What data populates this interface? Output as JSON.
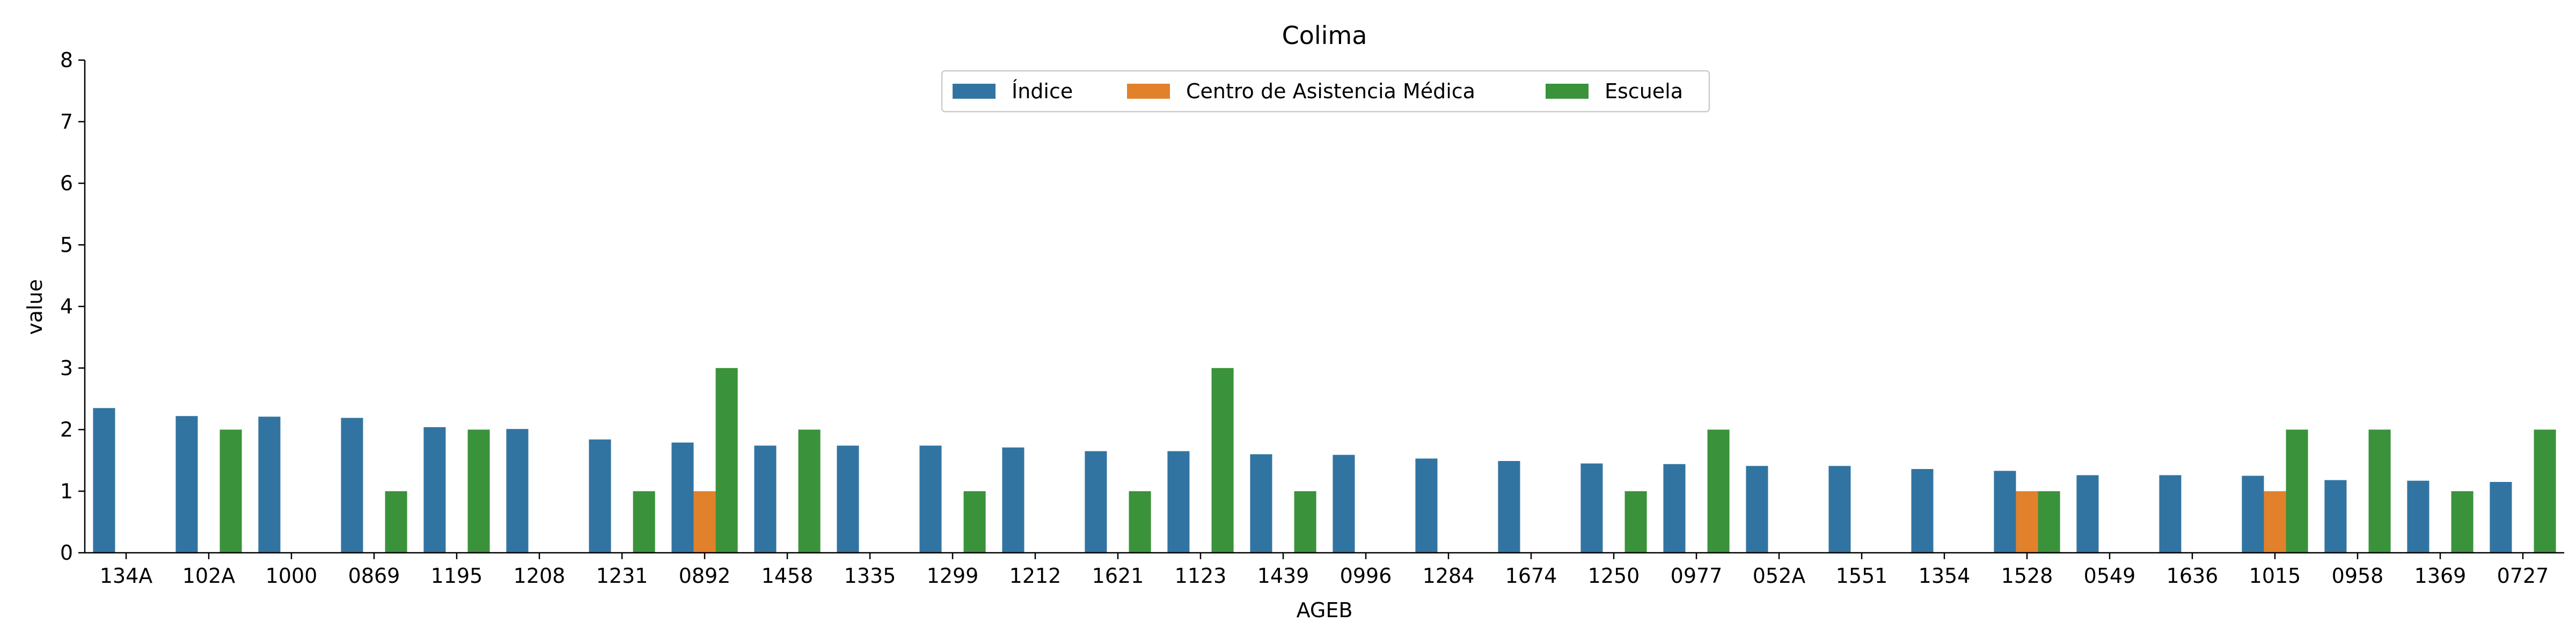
{
  "chart_data": {
    "type": "bar",
    "title": "Colima",
    "xlabel": "AGEB",
    "ylabel": "value",
    "ylim": [
      0,
      8
    ],
    "yticks": [
      "0",
      "1",
      "2",
      "3",
      "4",
      "5",
      "6",
      "7",
      "8"
    ],
    "legend_position": "top-center",
    "grid": false,
    "categories": [
      "134A",
      "102A",
      "1000",
      "0869",
      "1195",
      "1208",
      "1231",
      "0892",
      "1458",
      "1335",
      "1299",
      "1212",
      "1621",
      "1123",
      "1439",
      "0996",
      "1284",
      "1674",
      "1250",
      "0977",
      "052A",
      "1551",
      "1354",
      "1528",
      "0549",
      "1636",
      "1015",
      "0958",
      "1369",
      "0727"
    ],
    "series": [
      {
        "name": "Índice",
        "color": "#3274a1",
        "values": [
          2.35,
          2.22,
          2.21,
          2.19,
          2.04,
          2.01,
          1.84,
          1.79,
          1.74,
          1.74,
          1.74,
          1.71,
          1.65,
          1.65,
          1.6,
          1.59,
          1.53,
          1.49,
          1.45,
          1.44,
          1.41,
          1.41,
          1.36,
          1.33,
          1.26,
          1.26,
          1.25,
          1.18,
          1.17,
          1.15
        ]
      },
      {
        "name": "Centro de Asistencia Médica",
        "color": "#e1812c",
        "values": [
          0,
          0,
          0,
          0,
          0,
          0,
          0,
          1,
          0,
          0,
          0,
          0,
          0,
          0,
          0,
          0,
          0,
          0,
          0,
          0,
          0,
          0,
          0,
          1,
          0,
          0,
          1,
          0,
          0,
          0
        ]
      },
      {
        "name": "Escuela",
        "color": "#3a923a",
        "values": [
          0,
          2,
          0,
          1,
          2,
          0,
          1,
          3,
          2,
          0,
          1,
          0,
          1,
          3,
          1,
          0,
          0,
          0,
          1,
          2,
          0,
          0,
          0,
          1,
          0,
          0,
          2,
          2,
          1,
          2
        ]
      }
    ]
  }
}
